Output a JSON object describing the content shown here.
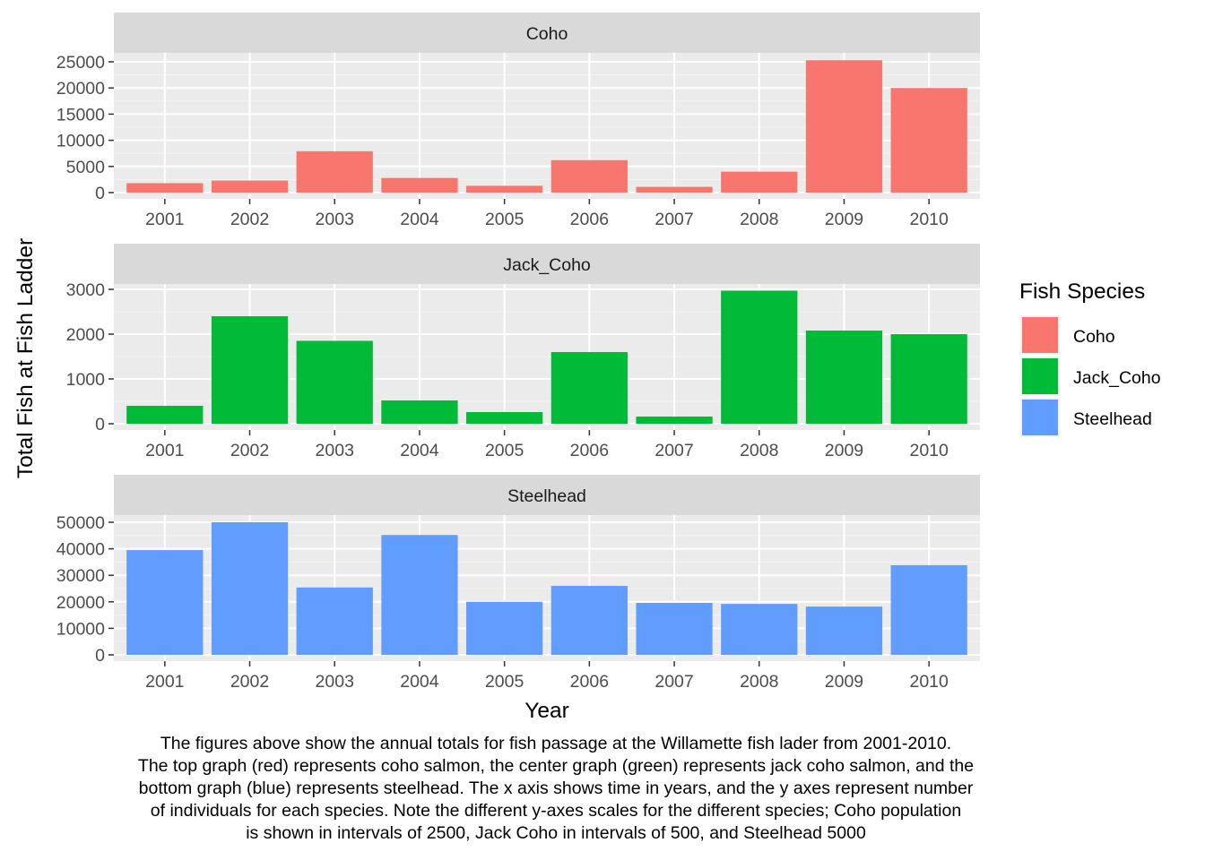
{
  "chart_data": {
    "type": "bar",
    "facet_layout": "vertical-stack",
    "xlabel": "Year",
    "ylabel": "Total Fish at Fish Ladder",
    "legend": {
      "title": "Fish Species",
      "position": "right",
      "entries": [
        {
          "name": "Coho",
          "color": "#F8766D"
        },
        {
          "name": "Jack_Coho",
          "color": "#00BA38"
        },
        {
          "name": "Steelhead",
          "color": "#619CFF"
        }
      ]
    },
    "grid": true,
    "categories": [
      "2001",
      "2002",
      "2003",
      "2004",
      "2005",
      "2006",
      "2007",
      "2008",
      "2009",
      "2010"
    ],
    "panels": [
      {
        "name": "Coho",
        "color": "#F8766D",
        "ylim": [
          0,
          25000
        ],
        "yticks": [
          "0",
          "5000",
          "10000",
          "15000",
          "20000",
          "25000"
        ],
        "values": [
          1800,
          2300,
          7900,
          2800,
          1300,
          6200,
          1100,
          4000,
          25300,
          20000
        ]
      },
      {
        "name": "Jack_Coho",
        "color": "#00BA38",
        "ylim": [
          0,
          3000
        ],
        "yticks": [
          "0",
          "1000",
          "2000",
          "3000"
        ],
        "values": [
          400,
          2400,
          1850,
          520,
          260,
          1600,
          160,
          2970,
          2080,
          2000
        ]
      },
      {
        "name": "Steelhead",
        "color": "#619CFF",
        "ylim": [
          0,
          50000
        ],
        "yticks": [
          "0",
          "10000",
          "20000",
          "30000",
          "40000",
          "50000"
        ],
        "values": [
          39500,
          50000,
          25400,
          45200,
          20000,
          26000,
          19600,
          19200,
          18200,
          33800
        ]
      }
    ]
  },
  "caption": [
    "The figures above show the annual totals for fish passage at the Willamette fish lader from 2001-2010.",
    "The top graph (red) represents coho salmon, the center graph (green) represents jack coho salmon, and the",
    "bottom graph (blue) represents steelhead. The x axis shows time in years, and the y axes represent number",
    "of individuals for each species. Note the different y-axes scales for the different species;  Coho population",
    "is shown in intervals of 2500, Jack Coho in intervals of 500, and Steelhead 5000"
  ]
}
